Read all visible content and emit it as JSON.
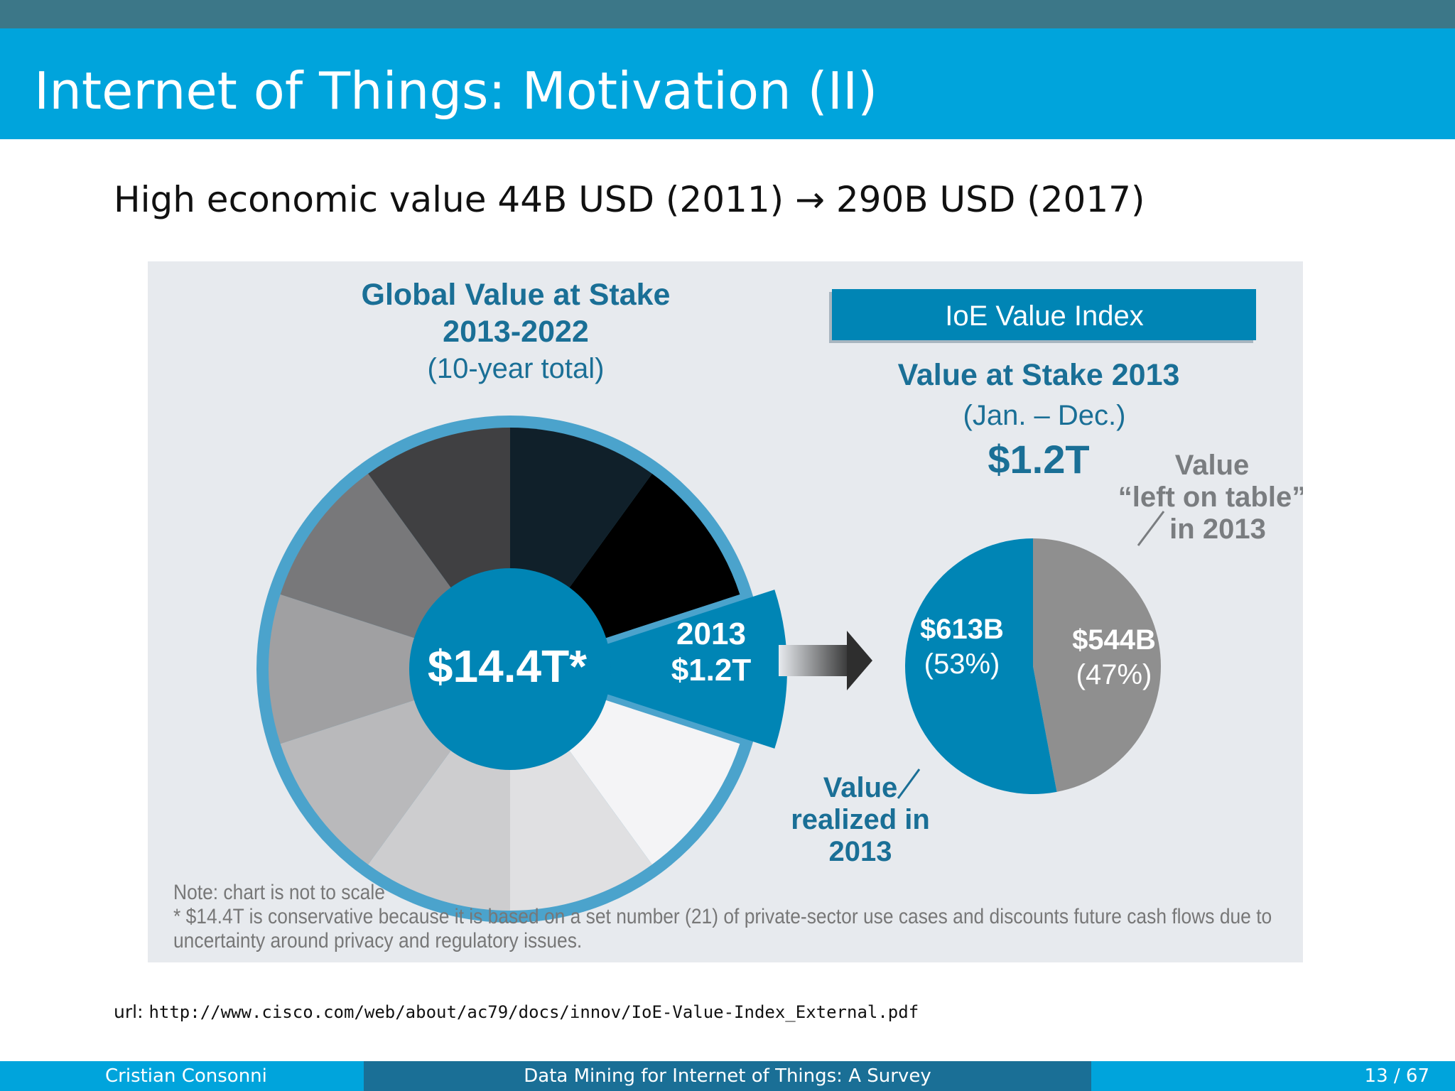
{
  "slide": {
    "title": "Internet of Things: Motivation (II)",
    "bullet": "High economic value 44B USD (2011) → 290B USD (2017)"
  },
  "colors": {
    "title_bar": "#00a4dc",
    "top_strip": "#3c7788",
    "footer_mid": "#1a6f96",
    "cisco_blue": "#0085b5",
    "ring_blue": "#4ba3cc",
    "grey_slice": "#8f8f8f",
    "title_text_blue": "#1a6f96"
  },
  "figure": {
    "left_title": "Global Value at Stake",
    "left_years": "2013-2022",
    "left_sub": "(10-year total)",
    "center_label": "$14.4T*",
    "wedge_year": "2013",
    "wedge_value": "$1.2T",
    "index_box": "IoE Value Index",
    "right_title": "Value at Stake 2013",
    "right_period": "(Jan. – Dec.)",
    "right_total": "$1.2T",
    "left_on_table_1": "Value",
    "left_on_table_2": "“left on table”",
    "left_on_table_3": "in 2013",
    "realized_1": "Value",
    "realized_2": "realized in",
    "realized_3": "2013",
    "note": "Note: chart is not to scale",
    "footnote": "* $14.4T is conservative because it is based on a set number (21) of private-sector use cases and discounts future cash flows due to uncertainty around privacy and regulatory issues."
  },
  "chart_data": [
    {
      "type": "pie",
      "title": "Global Value at Stake",
      "subtitle": "2013-2022 (10-year total)",
      "center_label": "$14.4T*",
      "categories": [
        "2013",
        "",
        "",
        "",
        "",
        "",
        "",
        "",
        "",
        ""
      ],
      "slice_colors": [
        "#0085b5",
        "#f4f4f6",
        "#e0e0e2",
        "#cdcdcf",
        "#b9b9bb",
        "#a0a0a2",
        "#78787a",
        "#404042",
        "#10202a",
        "#000000"
      ],
      "values": [
        1,
        1,
        1,
        1,
        1,
        1,
        1,
        1,
        1,
        1
      ],
      "labels": [
        {
          "text": "2013"
        },
        {
          "text": "$1.2T"
        }
      ],
      "annotation": "Note: chart is not to scale"
    },
    {
      "type": "pie",
      "title": "Value at Stake 2013",
      "subtitle": "(Jan. – Dec.)",
      "total": "$1.2T",
      "categories": [
        "Value realized in 2013",
        "Value “left on table” in 2013"
      ],
      "values": [
        613,
        544
      ],
      "value_labels": [
        "$613B",
        "$544B"
      ],
      "percents": [
        53,
        47
      ],
      "percent_labels": [
        "(53%)",
        "(47%)"
      ],
      "slice_colors": [
        "#0085b5",
        "#8f8f8f"
      ]
    }
  ],
  "url": {
    "prefix": "url:",
    "link": "http://www.cisco.com/web/about/ac79/docs/innov/IoE-Value-Index_External.pdf"
  },
  "footer": {
    "author": "Cristian Consonni",
    "talk_title": "Data Mining for Internet of Things: A Survey",
    "page": "13 / 67"
  }
}
